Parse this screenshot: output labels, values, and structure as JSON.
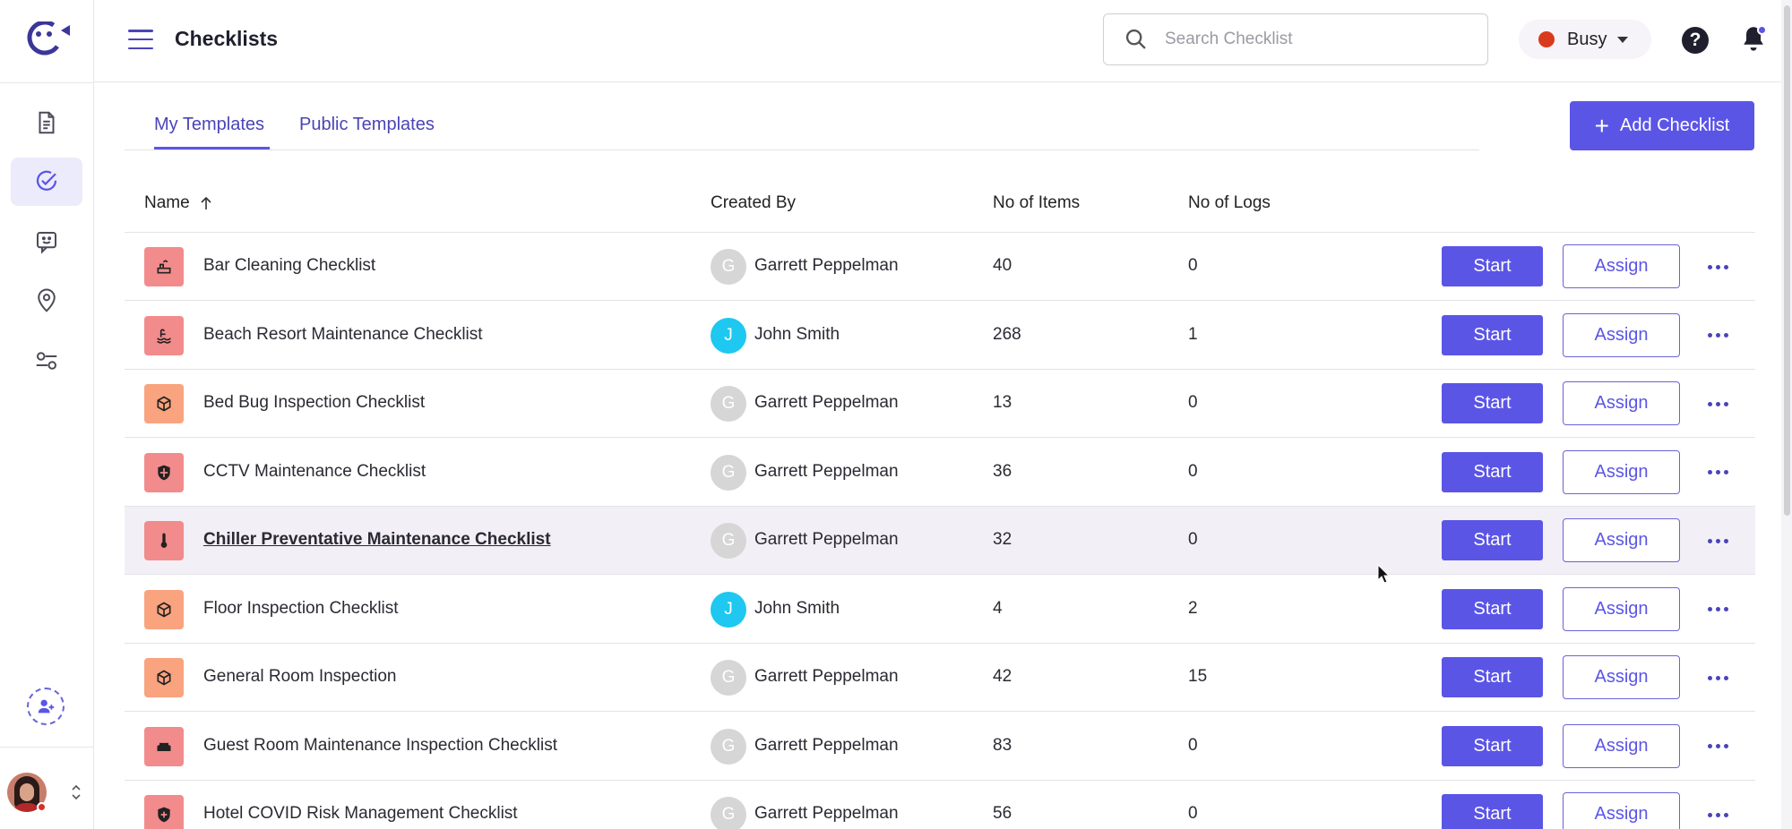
{
  "header": {
    "title": "Checklists",
    "search_placeholder": "Search Checklist",
    "status_label": "Busy"
  },
  "tabs": [
    {
      "label": "My Templates"
    },
    {
      "label": "Public Templates"
    }
  ],
  "add_button_label": "Add Checklist",
  "table": {
    "columns": [
      "Name",
      "Created By",
      "No of Items",
      "No of Logs"
    ],
    "start_label": "Start",
    "assign_label": "Assign",
    "rows": [
      {
        "name": "Bar Cleaning Checklist",
        "icon": "cleaning-icon",
        "icon_color": "#f28b8b",
        "creator": "Garrett Peppelman",
        "creator_initial": "G",
        "creator_color": "#d6d6d6",
        "items": "40",
        "logs": "0"
      },
      {
        "name": "Beach Resort Maintenance Checklist",
        "icon": "pool-icon",
        "icon_color": "#f28b8b",
        "creator": "John Smith",
        "creator_initial": "J",
        "creator_color": "#1ec8f0",
        "items": "268",
        "logs": "1"
      },
      {
        "name": "Bed Bug Inspection Checklist",
        "icon": "box-icon",
        "icon_color": "#f9a37f",
        "creator": "Garrett Peppelman",
        "creator_initial": "G",
        "creator_color": "#d6d6d6",
        "items": "13",
        "logs": "0"
      },
      {
        "name": "CCTV Maintenance Checklist",
        "icon": "shield-icon",
        "icon_color": "#f28b8b",
        "creator": "Garrett Peppelman",
        "creator_initial": "G",
        "creator_color": "#d6d6d6",
        "items": "36",
        "logs": "0"
      },
      {
        "name": "Chiller Preventative Maintenance Checklist",
        "icon": "thermometer-icon",
        "icon_color": "#f28b8b",
        "creator": "Garrett Peppelman",
        "creator_initial": "G",
        "creator_color": "#d6d6d6",
        "items": "32",
        "logs": "0"
      },
      {
        "name": "Floor Inspection Checklist",
        "icon": "box-icon",
        "icon_color": "#f9a37f",
        "creator": "John Smith",
        "creator_initial": "J",
        "creator_color": "#1ec8f0",
        "items": "4",
        "logs": "2"
      },
      {
        "name": "General Room Inspection",
        "icon": "box-icon",
        "icon_color": "#f9a37f",
        "creator": "Garrett Peppelman",
        "creator_initial": "G",
        "creator_color": "#d6d6d6",
        "items": "42",
        "logs": "15"
      },
      {
        "name": "Guest Room Maintenance Inspection Checklist",
        "icon": "bed-icon",
        "icon_color": "#f28b8b",
        "creator": "Garrett Peppelman",
        "creator_initial": "G",
        "creator_color": "#d6d6d6",
        "items": "83",
        "logs": "0"
      },
      {
        "name": "Hotel COVID Risk Management Checklist",
        "icon": "shield-plus-icon",
        "icon_color": "#f28b8b",
        "creator": "Garrett Peppelman",
        "creator_initial": "G",
        "creator_color": "#d6d6d6",
        "items": "56",
        "logs": "0"
      }
    ]
  },
  "colors": {
    "accent": "#5b55e6",
    "status_busy": "#d93a1e"
  }
}
